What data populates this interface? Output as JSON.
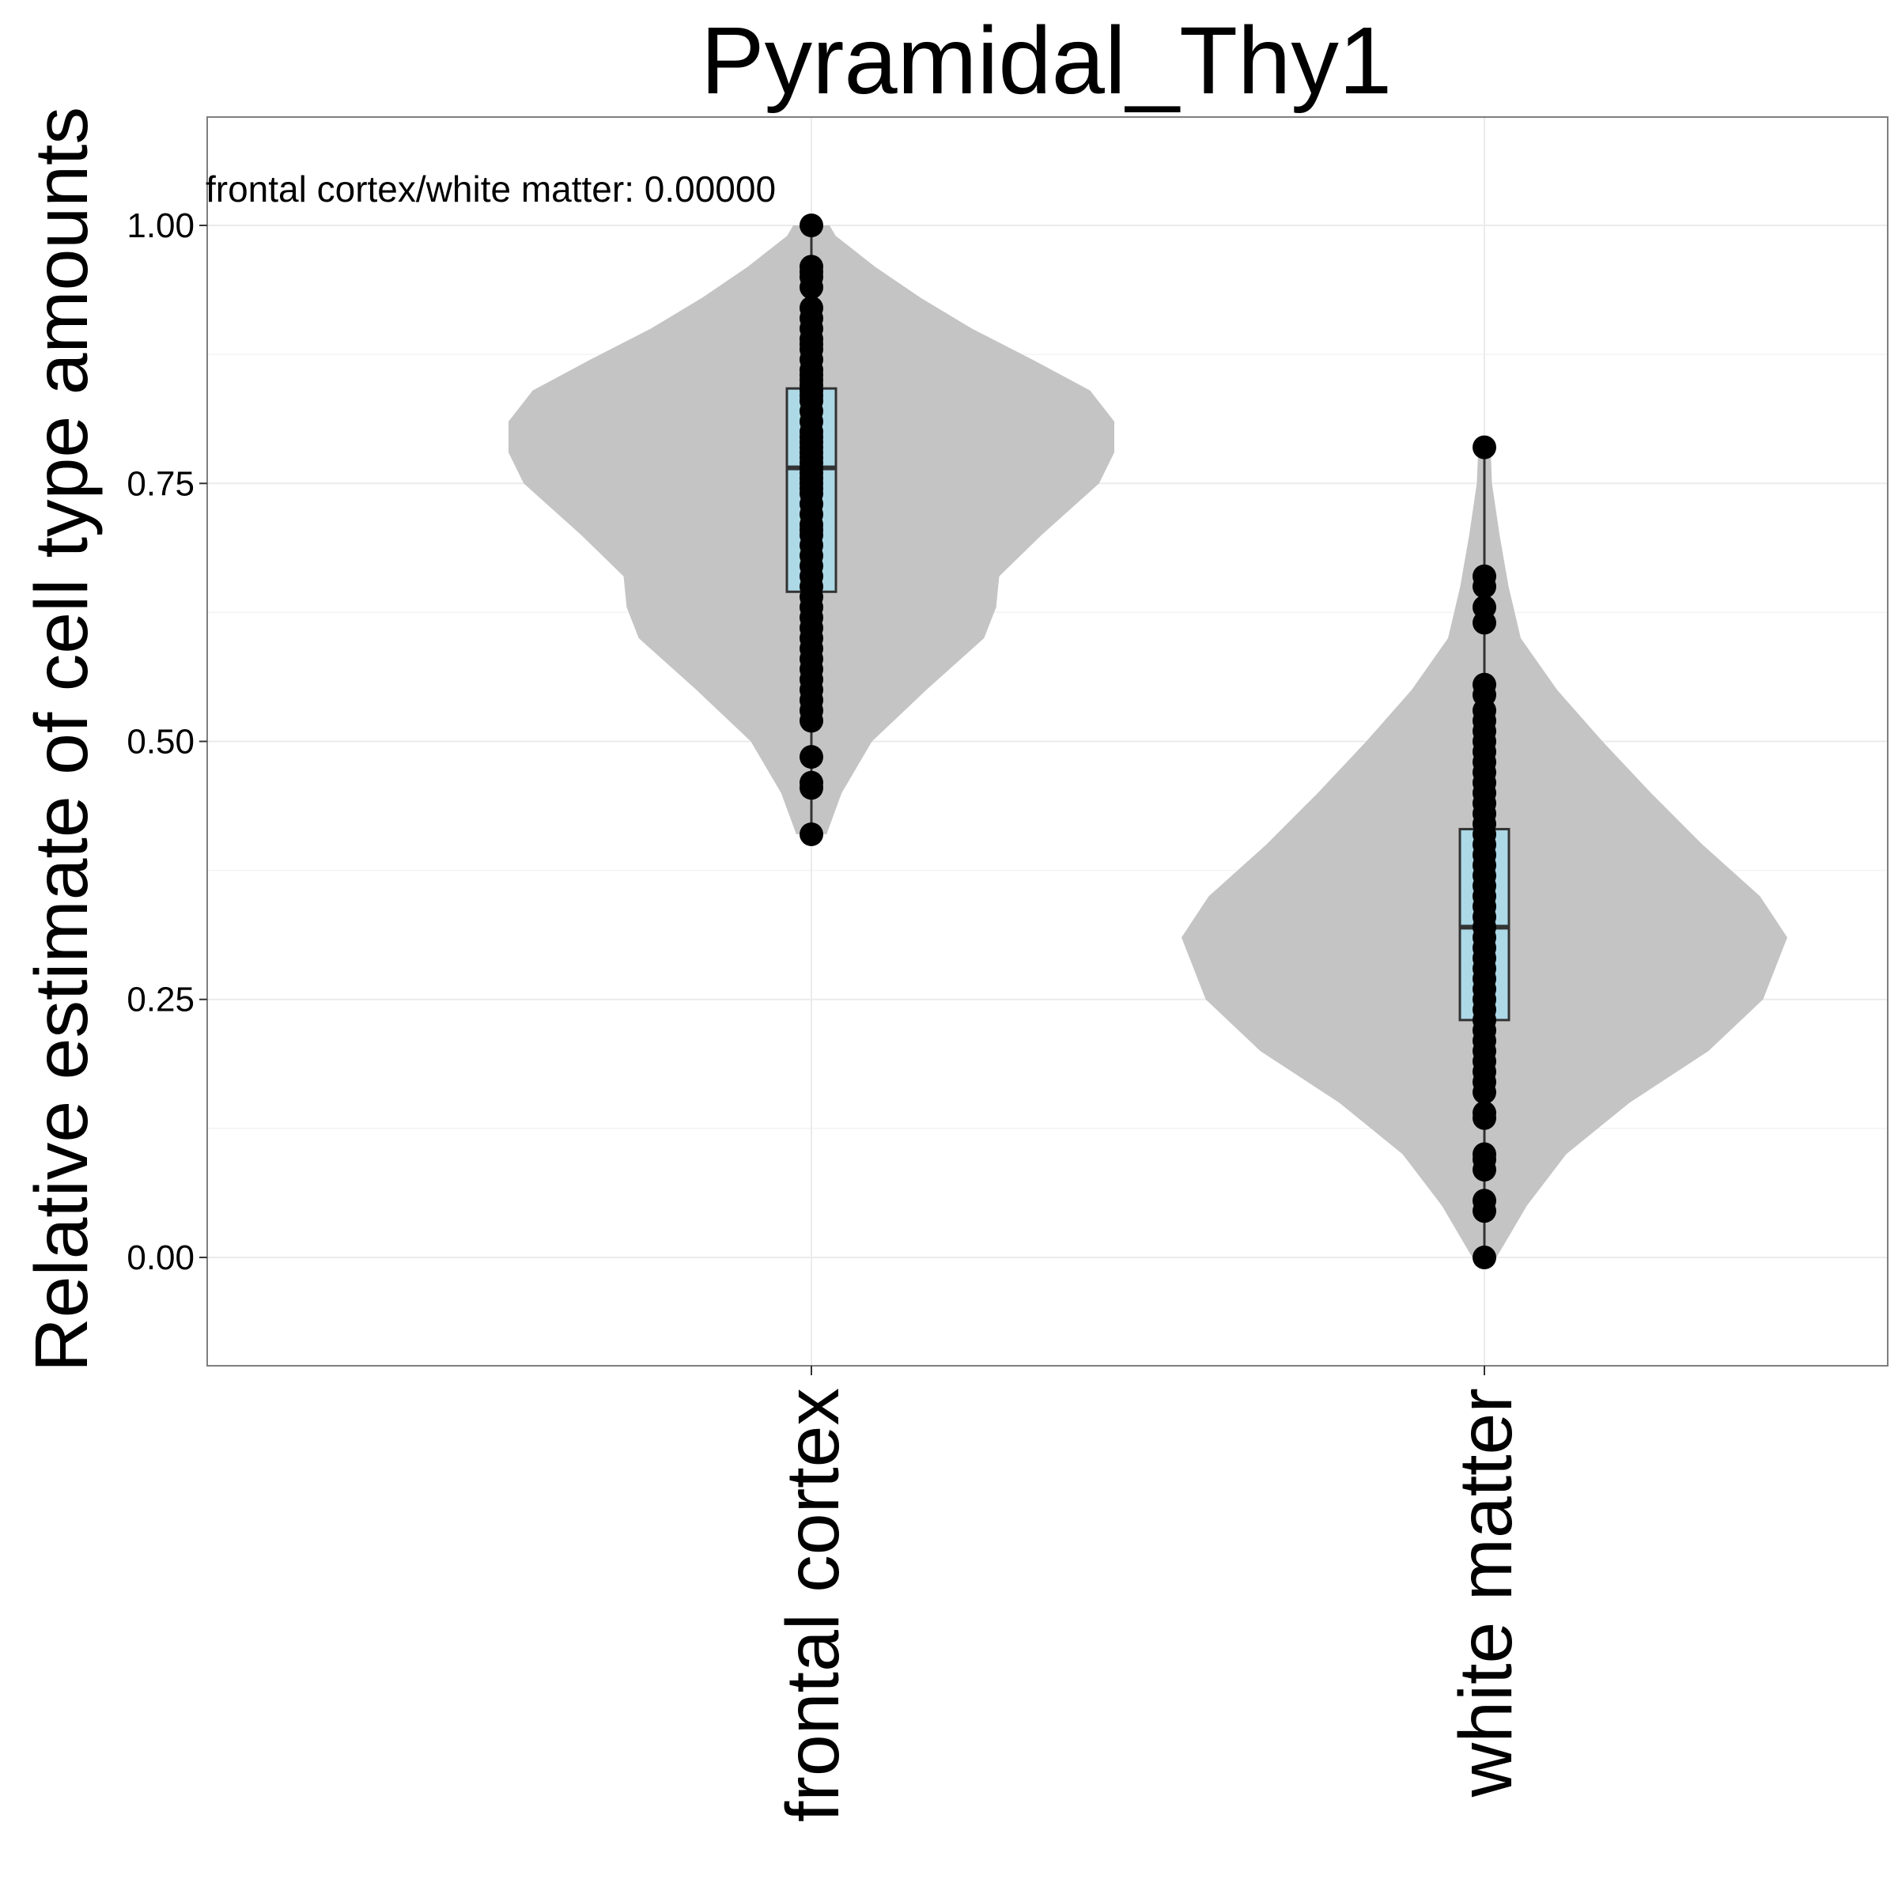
{
  "chart_data": {
    "type": "violin",
    "title": "Pyramidal_Thy1",
    "xlabel": "",
    "ylabel": "Relative estimate of cell type amounts",
    "ylim": [
      -0.105,
      1.105
    ],
    "y_ticks": [
      "0.00",
      "0.25",
      "0.50",
      "0.75",
      "1.00"
    ],
    "grid": true,
    "annotation": "frontal cortex/white matter: 0.00000",
    "categories": [
      "frontal cortex",
      "white matter"
    ],
    "colors": {
      "violin": "#c4c4c4",
      "box": "#add8e6",
      "box_stroke": "#333333",
      "points": "#000000",
      "grid": "#ebebeb",
      "panel_border": "#7f7f7f"
    },
    "series": [
      {
        "group": "frontal cortex",
        "box": {
          "min": 0.41,
          "q1": 0.645,
          "median": 0.765,
          "q3": 0.842,
          "max": 1.0
        },
        "violin_density": [
          [
            0.41,
            0.05
          ],
          [
            0.45,
            0.1
          ],
          [
            0.5,
            0.2
          ],
          [
            0.55,
            0.38
          ],
          [
            0.6,
            0.57
          ],
          [
            0.63,
            0.61
          ],
          [
            0.66,
            0.62
          ],
          [
            0.7,
            0.76
          ],
          [
            0.75,
            0.95
          ],
          [
            0.78,
            1.0
          ],
          [
            0.81,
            1.0
          ],
          [
            0.84,
            0.92
          ],
          [
            0.87,
            0.73
          ],
          [
            0.9,
            0.53
          ],
          [
            0.93,
            0.36
          ],
          [
            0.96,
            0.21
          ],
          [
            0.99,
            0.08
          ],
          [
            1.0,
            0.06
          ]
        ],
        "points": [
          1.0,
          0.96,
          0.955,
          0.95,
          0.94,
          0.92,
          0.91,
          0.9,
          0.89,
          0.885,
          0.88,
          0.87,
          0.86,
          0.855,
          0.85,
          0.845,
          0.84,
          0.835,
          0.83,
          0.82,
          0.81,
          0.8,
          0.795,
          0.79,
          0.785,
          0.78,
          0.775,
          0.77,
          0.765,
          0.76,
          0.755,
          0.75,
          0.745,
          0.74,
          0.73,
          0.72,
          0.71,
          0.705,
          0.7,
          0.69,
          0.68,
          0.67,
          0.66,
          0.65,
          0.64,
          0.63,
          0.62,
          0.61,
          0.6,
          0.59,
          0.58,
          0.57,
          0.56,
          0.55,
          0.54,
          0.53,
          0.52,
          0.485,
          0.46,
          0.455,
          0.41
        ]
      },
      {
        "group": "white matter",
        "box": {
          "min": 0.0,
          "q1": 0.23,
          "median": 0.32,
          "q3": 0.415,
          "max": 0.785
        },
        "violin_density": [
          [
            0.0,
            0.04
          ],
          [
            0.05,
            0.14
          ],
          [
            0.1,
            0.27
          ],
          [
            0.15,
            0.48
          ],
          [
            0.2,
            0.74
          ],
          [
            0.25,
            0.92
          ],
          [
            0.31,
            1.0
          ],
          [
            0.35,
            0.91
          ],
          [
            0.4,
            0.72
          ],
          [
            0.45,
            0.55
          ],
          [
            0.5,
            0.39
          ],
          [
            0.55,
            0.24
          ],
          [
            0.6,
            0.12
          ],
          [
            0.65,
            0.08
          ],
          [
            0.7,
            0.05
          ],
          [
            0.75,
            0.025
          ],
          [
            0.785,
            0.02
          ]
        ],
        "points": [
          0.785,
          0.66,
          0.65,
          0.63,
          0.615,
          0.555,
          0.545,
          0.53,
          0.52,
          0.51,
          0.5,
          0.49,
          0.48,
          0.47,
          0.46,
          0.45,
          0.44,
          0.43,
          0.42,
          0.41,
          0.4,
          0.39,
          0.38,
          0.37,
          0.36,
          0.35,
          0.34,
          0.33,
          0.32,
          0.31,
          0.3,
          0.29,
          0.28,
          0.27,
          0.26,
          0.25,
          0.24,
          0.23,
          0.22,
          0.21,
          0.2,
          0.19,
          0.18,
          0.17,
          0.16,
          0.14,
          0.135,
          0.1,
          0.095,
          0.085,
          0.055,
          0.045,
          0.0
        ]
      }
    ]
  }
}
